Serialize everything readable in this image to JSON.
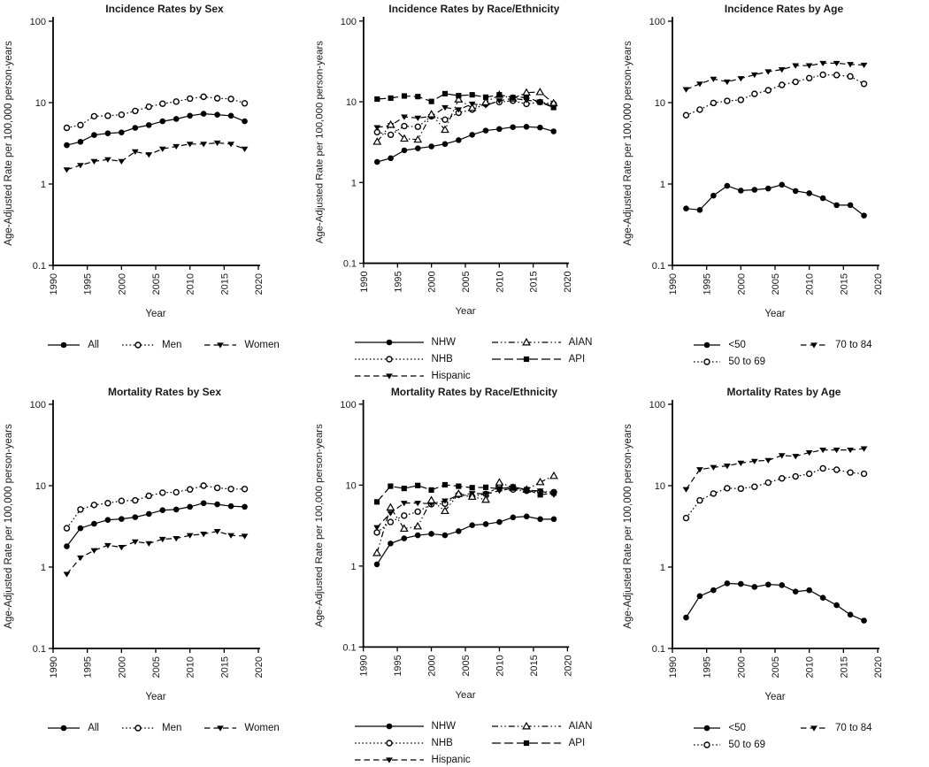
{
  "figure": {
    "background": "#ffffff",
    "ink": "#000000",
    "text_color": "#1a1a1a",
    "ylabel": "Age-Adjusted Rate per 100,000 person-years",
    "xlabel": "Year"
  },
  "chart_data": [
    {
      "type": "line",
      "id": "incidence-sex",
      "title": "Incidence Rates by Sex",
      "xlabel": "Year",
      "ylabel": "Age-Adjusted Rate per 100,000 person-years",
      "yscale": "log",
      "ylim": [
        0.1,
        100
      ],
      "xlim": [
        1990,
        2020
      ],
      "xticks": [
        1990,
        1995,
        2000,
        2005,
        2010,
        2015,
        2020
      ],
      "yticks": [
        0.1,
        1,
        10,
        100
      ],
      "grid": false,
      "legend_position": "bottom",
      "legend_cols": 3,
      "x": [
        1992,
        1994,
        1996,
        1998,
        2000,
        2002,
        2004,
        2006,
        2008,
        2010,
        2012,
        2014,
        2016,
        2018
      ],
      "series": [
        {
          "name": "All",
          "marker": "filled-circle",
          "line": "solid",
          "values": [
            3.0,
            3.3,
            4.0,
            4.2,
            4.3,
            4.9,
            5.3,
            5.9,
            6.3,
            6.9,
            7.3,
            7.1,
            6.9,
            5.9
          ]
        },
        {
          "name": "Men",
          "marker": "open-circle",
          "line": "dotted",
          "values": [
            4.9,
            5.3,
            6.8,
            6.9,
            7.1,
            7.9,
            8.9,
            9.7,
            10.3,
            11.2,
            11.8,
            11.3,
            11.1,
            9.8
          ]
        },
        {
          "name": "Women",
          "marker": "filled-triangle-down",
          "line": "dashed",
          "values": [
            1.5,
            1.7,
            1.9,
            2.0,
            1.9,
            2.5,
            2.3,
            2.7,
            2.9,
            3.1,
            3.1,
            3.2,
            3.1,
            2.7
          ]
        }
      ]
    },
    {
      "type": "line",
      "id": "incidence-race",
      "title": "Incidence Rates by Race/Ethnicity",
      "xlabel": "Year",
      "ylabel": "Age-Adjusted Rate per 100,000 person-years",
      "yscale": "log",
      "ylim": [
        0.1,
        100
      ],
      "xlim": [
        1990,
        2020
      ],
      "xticks": [
        1990,
        1995,
        2000,
        2005,
        2010,
        2015,
        2020
      ],
      "yticks": [
        0.1,
        1,
        10,
        100
      ],
      "grid": false,
      "legend_position": "bottom",
      "legend_cols": 2,
      "x": [
        1992,
        1994,
        1996,
        1998,
        2000,
        2002,
        2004,
        2006,
        2008,
        2010,
        2012,
        2014,
        2016,
        2018
      ],
      "series": [
        {
          "name": "NHW",
          "marker": "filled-circle",
          "line": "solid",
          "values": [
            1.8,
            2.0,
            2.5,
            2.65,
            2.8,
            3.0,
            3.35,
            3.9,
            4.4,
            4.6,
            4.85,
            4.9,
            4.8,
            4.3
          ]
        },
        {
          "name": "NHB",
          "marker": "open-circle",
          "line": "dotted",
          "values": [
            4.2,
            3.9,
            5.0,
            4.9,
            6.6,
            6.0,
            7.3,
            8.0,
            9.4,
            9.9,
            10.3,
            9.4,
            9.9,
            9.4
          ]
        },
        {
          "name": "Hispanic",
          "marker": "filled-triangle-down",
          "line": "dashed",
          "values": [
            4.8,
            5.1,
            6.5,
            6.3,
            6.6,
            8.5,
            8.0,
            9.4,
            9.0,
            10.3,
            11.0,
            10.5,
            10.0,
            8.7
          ]
        },
        {
          "name": "AIAN",
          "marker": "open-triangle-up",
          "line": "dash-dot-dot",
          "values": [
            3.2,
            5.2,
            3.5,
            3.4,
            7.0,
            4.5,
            10.7,
            8.4,
            9.9,
            12.2,
            11.0,
            13.0,
            13.2,
            9.6
          ]
        },
        {
          "name": "API",
          "marker": "filled-square",
          "line": "long-dash",
          "values": [
            10.8,
            11.1,
            11.8,
            11.6,
            10.1,
            12.6,
            11.9,
            12.2,
            11.4,
            12.2,
            11.3,
            11.4,
            9.9,
            8.5
          ]
        }
      ]
    },
    {
      "type": "line",
      "id": "incidence-age",
      "title": "Incidence Rates by Age",
      "xlabel": "Year",
      "ylabel": "Age-Adjusted Rate per 100,000 person-years",
      "yscale": "log",
      "ylim": [
        0.1,
        100
      ],
      "xlim": [
        1990,
        2020
      ],
      "xticks": [
        1990,
        1995,
        2000,
        2005,
        2010,
        2015,
        2020
      ],
      "yticks": [
        0.1,
        1,
        10,
        100
      ],
      "grid": false,
      "legend_position": "bottom",
      "legend_cols": 2,
      "x": [
        1992,
        1994,
        1996,
        1998,
        2000,
        2002,
        2004,
        2006,
        2008,
        2010,
        2012,
        2014,
        2016,
        2018
      ],
      "series": [
        {
          "name": "<50",
          "marker": "filled-circle",
          "line": "solid",
          "values": [
            0.5,
            0.48,
            0.72,
            0.95,
            0.83,
            0.85,
            0.88,
            0.98,
            0.82,
            0.77,
            0.67,
            0.55,
            0.55,
            0.41
          ]
        },
        {
          "name": "50 to 69",
          "marker": "open-circle",
          "line": "dotted",
          "values": [
            7.0,
            8.2,
            9.9,
            10.5,
            10.8,
            12.8,
            14.2,
            16.5,
            18.0,
            20.0,
            22.0,
            21.8,
            21.0,
            17.0
          ]
        },
        {
          "name": "70 to 84",
          "marker": "filled-triangle-down",
          "line": "dashed",
          "values": [
            14.5,
            17.0,
            19.5,
            18.0,
            19.8,
            22.0,
            24.0,
            25.5,
            28.5,
            28.5,
            30.5,
            30.5,
            29.5,
            29.0
          ]
        }
      ]
    },
    {
      "type": "line",
      "id": "mortality-sex",
      "title": "Mortality Rates by Sex",
      "xlabel": "Year",
      "ylabel": "Age-Adjusted Rate per 100,000 person-years",
      "yscale": "log",
      "ylim": [
        0.1,
        100
      ],
      "xlim": [
        1990,
        2020
      ],
      "xticks": [
        1990,
        1995,
        2000,
        2005,
        2010,
        2015,
        2020
      ],
      "yticks": [
        0.1,
        1,
        10,
        100
      ],
      "grid": false,
      "legend_position": "bottom",
      "legend_cols": 3,
      "x": [
        1992,
        1994,
        1996,
        1998,
        2000,
        2002,
        2004,
        2006,
        2008,
        2010,
        2012,
        2014,
        2016,
        2018
      ],
      "series": [
        {
          "name": "All",
          "marker": "filled-circle",
          "line": "solid",
          "values": [
            1.8,
            3.0,
            3.4,
            3.8,
            3.9,
            4.1,
            4.5,
            5.0,
            5.1,
            5.5,
            6.1,
            5.9,
            5.6,
            5.5
          ]
        },
        {
          "name": "Men",
          "marker": "open-circle",
          "line": "dotted",
          "values": [
            3.0,
            5.1,
            5.8,
            6.1,
            6.5,
            6.6,
            7.5,
            8.2,
            8.3,
            9.0,
            10.0,
            9.4,
            9.1,
            9.1
          ]
        },
        {
          "name": "Women",
          "marker": "filled-triangle-down",
          "line": "dashed",
          "values": [
            0.82,
            1.3,
            1.6,
            1.85,
            1.75,
            2.05,
            1.95,
            2.2,
            2.25,
            2.45,
            2.55,
            2.75,
            2.45,
            2.4
          ]
        }
      ]
    },
    {
      "type": "line",
      "id": "mortality-race",
      "title": "Mortality Rates by Race/Ethnicity",
      "xlabel": "Year",
      "ylabel": "Age-Adjusted Rate per 100,000 person-years",
      "yscale": "log",
      "ylim": [
        0.1,
        100
      ],
      "xlim": [
        1990,
        2020
      ],
      "xticks": [
        1990,
        1995,
        2000,
        2005,
        2010,
        2015,
        2020
      ],
      "yticks": [
        0.1,
        1,
        10,
        100
      ],
      "grid": false,
      "legend_position": "bottom",
      "legend_cols": 2,
      "x": [
        1992,
        1994,
        1996,
        1998,
        2000,
        2002,
        2004,
        2006,
        2008,
        2010,
        2012,
        2014,
        2016,
        2018
      ],
      "series": [
        {
          "name": "NHW",
          "marker": "filled-circle",
          "line": "solid",
          "values": [
            1.05,
            1.9,
            2.2,
            2.4,
            2.5,
            2.4,
            2.7,
            3.2,
            3.3,
            3.5,
            4.0,
            4.1,
            3.8,
            3.8
          ]
        },
        {
          "name": "NHB",
          "marker": "open-circle",
          "line": "dotted",
          "values": [
            2.6,
            3.5,
            4.2,
            4.7,
            5.8,
            5.9,
            7.6,
            7.2,
            7.8,
            9.5,
            8.8,
            8.5,
            8.3,
            8.2
          ]
        },
        {
          "name": "Hispanic",
          "marker": "filled-triangle-down",
          "line": "dashed",
          "values": [
            3.0,
            4.5,
            6.0,
            6.0,
            5.9,
            6.4,
            7.5,
            7.9,
            7.8,
            8.5,
            9.2,
            8.6,
            8.5,
            7.6
          ]
        },
        {
          "name": "AIAN",
          "marker": "open-triangle-up",
          "line": "dash-dot-dot",
          "values": [
            1.45,
            5.3,
            2.9,
            3.1,
            6.5,
            4.8,
            7.8,
            7.2,
            6.6,
            10.8,
            9.3,
            8.8,
            10.9,
            13.0
          ]
        },
        {
          "name": "API",
          "marker": "filled-square",
          "line": "long-dash",
          "values": [
            6.2,
            9.7,
            9.1,
            9.9,
            8.7,
            10.1,
            9.7,
            9.3,
            9.4,
            9.0,
            9.5,
            8.8,
            7.6,
            8.0
          ]
        }
      ]
    },
    {
      "type": "line",
      "id": "mortality-age",
      "title": "Mortality Rates by Age",
      "xlabel": "Year",
      "ylabel": "Age-Adjusted Rate per 100,000 person-years",
      "yscale": "log",
      "ylim": [
        0.1,
        100
      ],
      "xlim": [
        1990,
        2020
      ],
      "xticks": [
        1990,
        1995,
        2000,
        2005,
        2010,
        2015,
        2020
      ],
      "yticks": [
        0.1,
        1,
        10,
        100
      ],
      "grid": false,
      "legend_position": "bottom",
      "legend_cols": 2,
      "x": [
        1992,
        1994,
        1996,
        1998,
        2000,
        2002,
        2004,
        2006,
        2008,
        2010,
        2012,
        2014,
        2016,
        2018
      ],
      "series": [
        {
          "name": "<50",
          "marker": "filled-circle",
          "line": "solid",
          "values": [
            0.24,
            0.44,
            0.52,
            0.63,
            0.62,
            0.57,
            0.61,
            0.6,
            0.5,
            0.52,
            0.42,
            0.34,
            0.26,
            0.22
          ]
        },
        {
          "name": "50 to 69",
          "marker": "open-circle",
          "line": "dotted",
          "values": [
            4.0,
            6.6,
            8.0,
            9.3,
            9.2,
            9.7,
            10.9,
            12.3,
            13.0,
            14.0,
            16.3,
            15.7,
            14.5,
            14.0
          ]
        },
        {
          "name": "70 to 84",
          "marker": "filled-triangle-down",
          "line": "dashed",
          "values": [
            9.0,
            15.8,
            16.8,
            17.5,
            19.0,
            20.0,
            20.5,
            23.5,
            23.0,
            25.5,
            27.5,
            27.5,
            27.5,
            28.5
          ]
        }
      ]
    }
  ]
}
